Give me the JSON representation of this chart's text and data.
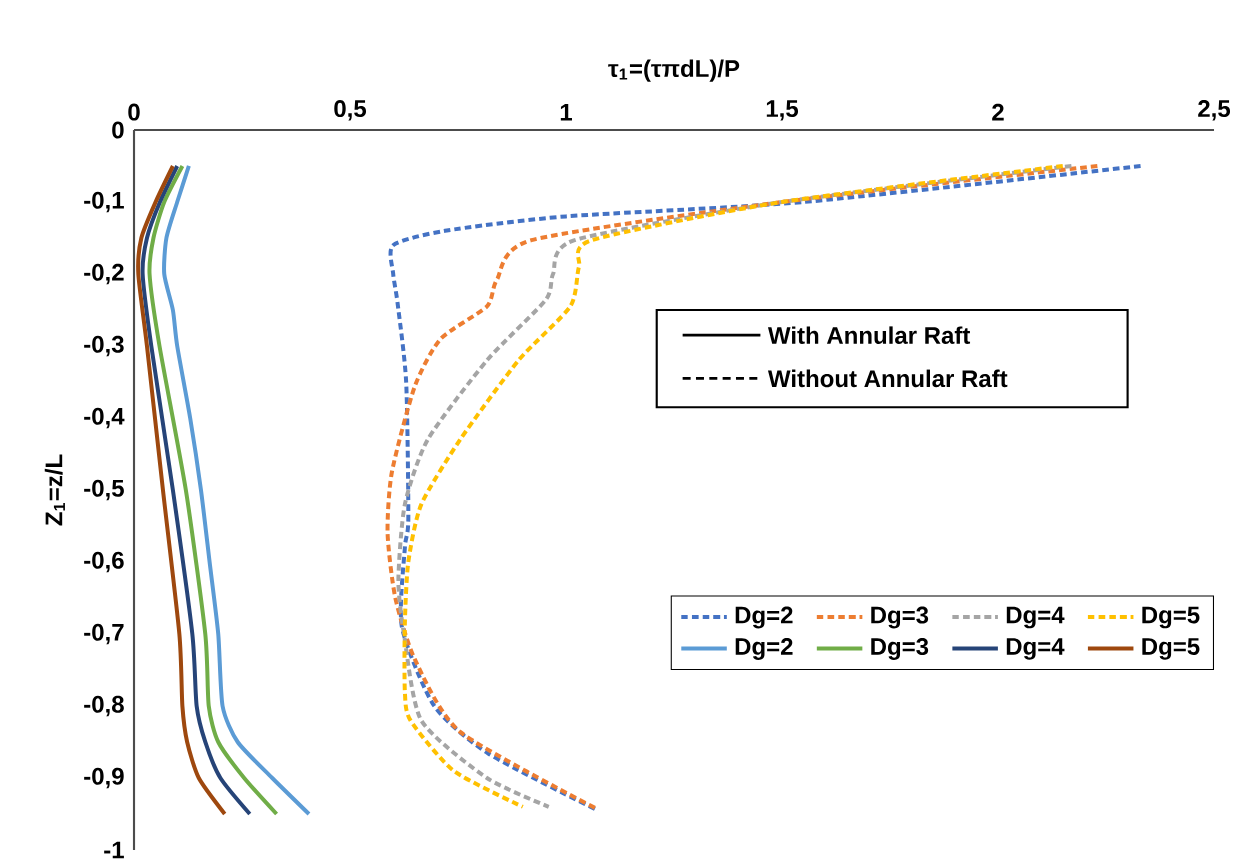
{
  "chart_data": {
    "type": "line",
    "xlabel": "τ$_{1}$=(τπdL)/P",
    "ylabel": "Z$_{1}$=z/L",
    "xlim": [
      0,
      2.5
    ],
    "ylim": [
      -1,
      0
    ],
    "xticks": [
      0,
      {
        "value": 0.5,
        "label": "0,5"
      },
      1,
      {
        "value": 1.5,
        "label": "1,5"
      },
      2,
      {
        "value": 2.5,
        "label": "2,5"
      }
    ],
    "yticks": [
      0,
      {
        "value": -0.1,
        "label": "-0,1"
      },
      {
        "value": -0.2,
        "label": "-0,2"
      },
      {
        "value": -0.3,
        "label": "-0,3"
      },
      {
        "value": -0.4,
        "label": "-0,4"
      },
      {
        "value": -0.5,
        "label": "-0,5"
      },
      {
        "value": -0.6,
        "label": "-0,6"
      },
      {
        "value": -0.7,
        "label": "-0,7"
      },
      {
        "value": -0.8,
        "label": "-0,8"
      },
      {
        "value": -0.9,
        "label": "-0,9"
      },
      -1
    ],
    "legend": "bottom right",
    "annotations": [
      "With Annular Raft",
      "Without Annular Raft"
    ],
    "series": [
      {
        "name": "Dg=2",
        "color": "#4472c4",
        "line_style": "dashed",
        "x": [
          2.33,
          1.55,
          1.0,
          0.72,
          0.6,
          0.6,
          0.61,
          0.63,
          0.635,
          0.627,
          0.62,
          0.695,
          0.82,
          1.07
        ],
        "values": [
          -0.05,
          -0.1,
          -0.12,
          -0.14,
          -0.16,
          -0.2,
          -0.24,
          -0.35,
          -0.54,
          -0.58,
          -0.69,
          -0.8,
          -0.866,
          -0.944
        ]
      },
      {
        "name": "Dg=3",
        "color": "#ed7d31",
        "line_style": "dashed",
        "x": [
          2.23,
          1.5,
          0.92,
          0.84,
          0.817,
          0.71,
          0.65,
          0.597,
          0.587,
          0.605,
          0.65,
          0.755,
          1.075
        ],
        "values": [
          -0.05,
          -0.1,
          -0.153,
          -0.208,
          -0.245,
          -0.29,
          -0.356,
          -0.475,
          -0.56,
          -0.65,
          -0.735,
          -0.836,
          -0.944
        ]
      },
      {
        "name": "Dg=4",
        "color": "#a5a5a5",
        "line_style": "dashed",
        "x": [
          2.17,
          1.5,
          1.02,
          0.97,
          0.953,
          0.817,
          0.68,
          0.627,
          0.612,
          0.625,
          0.665,
          0.817,
          0.96
        ],
        "values": [
          -0.05,
          -0.1,
          -0.153,
          -0.2,
          -0.236,
          -0.32,
          -0.43,
          -0.52,
          -0.625,
          -0.7,
          -0.82,
          -0.9,
          -0.94
        ]
      },
      {
        "name": "Dg=5",
        "color": "#ffc000",
        "line_style": "dashed",
        "x": [
          2.15,
          1.5,
          1.06,
          1.03,
          1.01,
          0.89,
          0.755,
          0.665,
          0.635,
          0.627,
          0.627,
          0.64,
          0.74,
          0.9
        ],
        "values": [
          -0.05,
          -0.1,
          -0.153,
          -0.19,
          -0.245,
          -0.32,
          -0.43,
          -0.52,
          -0.6,
          -0.685,
          -0.78,
          -0.82,
          -0.89,
          -0.94
        ]
      },
      {
        "name": "Dg=2",
        "color": "#5b9bd5",
        "line_style": "solid",
        "x": [
          0.127,
          0.1,
          0.075,
          0.07,
          0.09,
          0.1,
          0.13,
          0.155,
          0.175,
          0.195,
          0.205,
          0.24,
          0.32,
          0.405
        ],
        "values": [
          -0.05,
          -0.1,
          -0.15,
          -0.2,
          -0.25,
          -0.3,
          -0.4,
          -0.5,
          -0.6,
          -0.7,
          -0.8,
          -0.85,
          -0.9,
          -0.95
        ]
      },
      {
        "name": "Dg=3",
        "color": "#70ad47",
        "line_style": "solid",
        "x": [
          0.112,
          0.07,
          0.045,
          0.036,
          0.059,
          0.12,
          0.165,
          0.173,
          0.195,
          0.255,
          0.33
        ],
        "values": [
          -0.05,
          -0.1,
          -0.15,
          -0.2,
          -0.3,
          -0.5,
          -0.7,
          -0.8,
          -0.85,
          -0.9,
          -0.95
        ]
      },
      {
        "name": "Dg=4",
        "color": "#264478",
        "line_style": "solid",
        "x": [
          0.1,
          0.06,
          0.03,
          0.02,
          0.04,
          0.09,
          0.135,
          0.145,
          0.165,
          0.2,
          0.268
        ],
        "values": [
          -0.05,
          -0.1,
          -0.15,
          -0.2,
          -0.3,
          -0.5,
          -0.7,
          -0.8,
          -0.85,
          -0.9,
          -0.95
        ]
      },
      {
        "name": "Dg=5",
        "color": "#9e480e",
        "line_style": "solid",
        "x": [
          0.09,
          0.05,
          0.017,
          0.01,
          0.03,
          0.067,
          0.105,
          0.112,
          0.123,
          0.15,
          0.21
        ],
        "values": [
          -0.05,
          -0.1,
          -0.15,
          -0.2,
          -0.3,
          -0.5,
          -0.7,
          -0.8,
          -0.85,
          -0.9,
          -0.95
        ]
      }
    ]
  }
}
